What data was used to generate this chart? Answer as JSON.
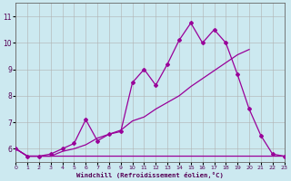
{
  "xlabel": "Windchill (Refroidissement éolien,°C)",
  "background_color": "#cce9f0",
  "line_color": "#990099",
  "grid_color": "#b0b0b0",
  "xlim": [
    0,
    23
  ],
  "ylim": [
    5.5,
    11.5
  ],
  "xticks": [
    0,
    1,
    2,
    3,
    4,
    5,
    6,
    7,
    8,
    9,
    10,
    11,
    12,
    13,
    14,
    15,
    16,
    17,
    18,
    19,
    20,
    21,
    22,
    23
  ],
  "yticks": [
    6,
    7,
    8,
    9,
    10,
    11
  ],
  "line0_x": [
    0,
    1,
    2,
    3,
    4,
    5,
    6,
    7,
    8,
    9,
    10,
    11,
    12,
    13,
    14,
    15,
    16,
    17,
    18,
    19,
    20,
    21,
    22,
    23
  ],
  "line0_y": [
    6.0,
    5.72,
    5.72,
    5.72,
    5.72,
    5.72,
    5.72,
    5.72,
    5.72,
    5.72,
    5.72,
    5.72,
    5.72,
    5.72,
    5.72,
    5.72,
    5.72,
    5.72,
    5.72,
    5.72,
    5.72,
    5.72,
    5.72,
    5.72
  ],
  "line1_x": [
    0,
    1,
    2,
    3,
    4,
    5,
    6,
    7,
    8,
    9,
    10,
    11,
    12,
    13,
    14,
    15,
    16,
    17,
    18,
    19,
    20,
    21,
    22,
    23
  ],
  "line1_y": [
    6.0,
    5.72,
    5.72,
    5.72,
    5.9,
    6.0,
    6.15,
    6.4,
    6.55,
    6.7,
    7.05,
    7.2,
    7.5,
    7.75,
    8.0,
    8.35,
    8.65,
    8.95,
    9.25,
    9.55,
    9.75,
    null,
    null,
    null
  ],
  "line2_x": [
    0,
    1,
    2,
    3,
    4,
    5,
    6,
    7,
    8,
    9,
    10,
    11,
    12,
    13,
    14,
    15,
    16,
    17,
    18,
    19,
    20,
    21,
    22,
    23
  ],
  "line2_y": [
    6.0,
    5.72,
    5.72,
    5.8,
    6.0,
    6.2,
    7.1,
    6.3,
    6.55,
    6.65,
    8.5,
    9.0,
    8.4,
    9.2,
    10.1,
    10.75,
    10.0,
    10.5,
    10.0,
    8.8,
    7.5,
    6.5,
    5.8,
    5.72
  ]
}
